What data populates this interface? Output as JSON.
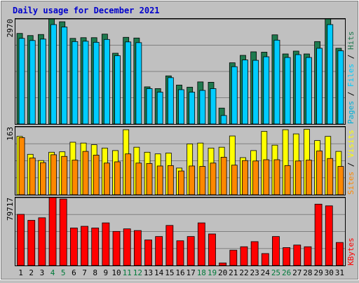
{
  "chart_data": {
    "type": "bar",
    "title": "Daily usage for December 2021",
    "colors": {
      "background": "#c0c0c0",
      "plot_bg": "#c0c0c0",
      "title": "#0000cc",
      "hits": "#1e7a4e",
      "files": "#00ccff",
      "pages": "#00b0d8",
      "visits": "#ffff00",
      "sites": "#ff8800",
      "kbytes": "#ff0000",
      "weekend_label": "#007a3a",
      "weekday_label": "#000000",
      "grid": "#808080"
    },
    "days": [
      "1",
      "2",
      "3",
      "4",
      "5",
      "6",
      "7",
      "8",
      "9",
      "10",
      "11",
      "12",
      "13",
      "14",
      "15",
      "16",
      "17",
      "18",
      "19",
      "20",
      "21",
      "22",
      "23",
      "24",
      "25",
      "26",
      "27",
      "28",
      "29",
      "30",
      "31"
    ],
    "weekend_days": [
      "4",
      "5",
      "11",
      "12",
      "18",
      "19",
      "25",
      "26"
    ],
    "panels": [
      {
        "ylabel_parts": [
          "Pages",
          "Files",
          "Hits"
        ],
        "ylabel_colors": [
          "#00b0d8",
          "#00ccff",
          "#1e7a4e"
        ],
        "max_label": "2970",
        "ylim": [
          0,
          2970
        ],
        "series": [
          {
            "name": "Hits",
            "values": [
              2560,
              2500,
              2530,
              2970,
              2890,
              2420,
              2440,
              2440,
              2540,
              2000,
              2450,
              2430,
              1050,
              1000,
              1360,
              1100,
              1040,
              1190,
              1180,
              450,
              1730,
              1940,
              2040,
              2030,
              2520,
              1980,
              2060,
              1980,
              2330,
              2970,
              2140
            ]
          },
          {
            "name": "Files",
            "values": [
              2420,
              2360,
              2400,
              2810,
              2740,
              2330,
              2340,
              2310,
              2390,
              1930,
              2320,
              2300,
              1000,
              900,
              1310,
              970,
              900,
              950,
              1000,
              240,
              1620,
              1810,
              1800,
              1900,
              2370,
              1880,
              1960,
              1880,
              2140,
              2810,
              2070
            ]
          }
        ]
      },
      {
        "ylabel_parts": [
          "Sites",
          "Visits"
        ],
        "ylabel_colors": [
          "#ff8800",
          "#ffff00"
        ],
        "max_label": "163",
        "ylim": [
          0,
          163
        ],
        "series": [
          {
            "name": "Visits",
            "values": [
              140,
              97,
              82,
              102,
              103,
              126,
              124,
              120,
              112,
              106,
              156,
              114,
              102,
              98,
              100,
              64,
              122,
              124,
              112,
              114,
              141,
              89,
              106,
              152,
              119,
              156,
              146,
              157,
              130,
              140,
              104
            ]
          },
          {
            "name": "Sites",
            "values": [
              137,
              88,
              77,
              96,
              92,
              83,
              104,
              95,
              76,
              79,
              98,
              76,
              75,
              69,
              70,
              57,
              69,
              68,
              76,
              90,
              71,
              82,
              81,
              84,
              84,
              70,
              81,
              83,
              105,
              87,
              68
            ]
          }
        ]
      },
      {
        "ylabel_parts": [
          "KBytes"
        ],
        "ylabel_colors": [
          "#ff0000"
        ],
        "max_label": "79717",
        "ylim": [
          0,
          79717
        ],
        "series": [
          {
            "name": "KBytes",
            "values": [
              60000,
              53000,
              56000,
              79717,
              78000,
              44000,
              46000,
              44000,
              50000,
              40000,
              43000,
              41000,
              30000,
              34000,
              47000,
              29000,
              34000,
              50000,
              37000,
              3000,
              18000,
              22000,
              28000,
              14000,
              34000,
              21000,
              24000,
              22000,
              72000,
              70000,
              27000
            ]
          }
        ]
      }
    ]
  }
}
